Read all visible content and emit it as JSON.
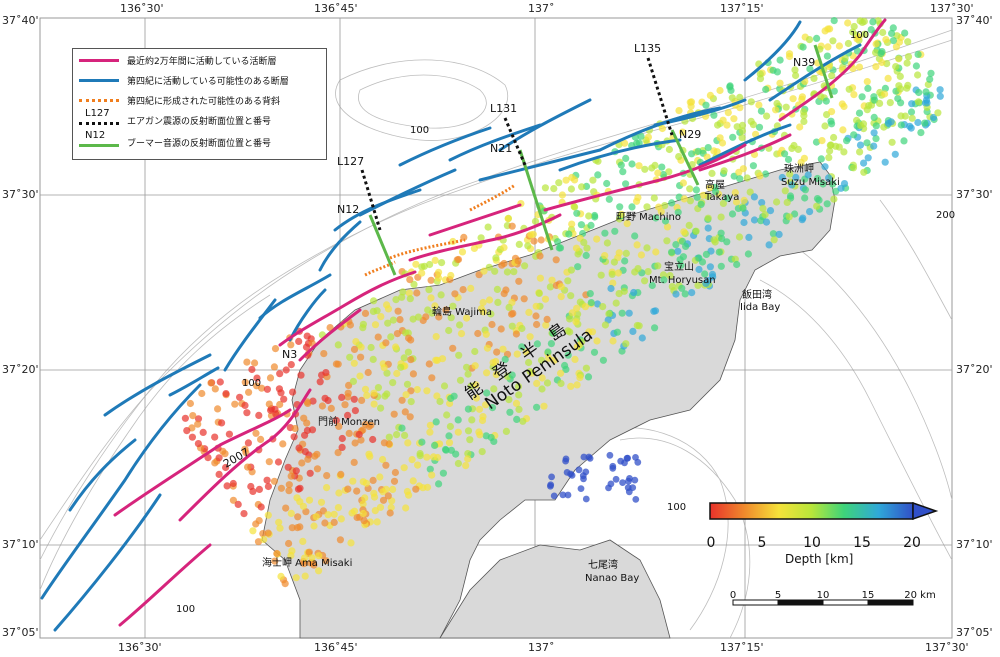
{
  "coords": {
    "top_left": "37˚40'",
    "lon_ticks": [
      "136˚30'",
      "136˚45'",
      "137˚",
      "137˚15'",
      "137˚30'"
    ],
    "lat_ticks": [
      "37˚40'",
      "37˚30'",
      "37˚20'",
      "37˚10'",
      "37˚05'"
    ]
  },
  "legend": [
    {
      "label": "最近約2万年間に活動している活断層",
      "color": "#d6247c",
      "style": "solid"
    },
    {
      "label": "第四紀に活動している可能性のある断層",
      "color": "#1f7ab8",
      "style": "solid"
    },
    {
      "label": "第四紀に形成された可能性のある背斜",
      "color": "#f07e1e",
      "style": "dotted"
    },
    {
      "label": "エアガン震源の反射断面位置と番号",
      "color": "#111111",
      "style": "dotted",
      "sample": "L127"
    },
    {
      "label": "ブーマー音源の反射断面位置と番号",
      "color": "#5cb84a",
      "style": "solid",
      "sample": "N12"
    }
  ],
  "survey_lines": {
    "L127": "L127",
    "N12": "N12",
    "L131": "L131",
    "N21": "N21",
    "L135": "L135",
    "N29": "N29",
    "N39": "N39",
    "N3": "N3",
    "year": "2007"
  },
  "places": {
    "wajima": "輪島 Wajima",
    "monzen": "門前 Monzen",
    "ama": "海士岬 Ama Misaki",
    "machino": "町野 Machino",
    "horyusan_jp": "宝立山",
    "horyusan_en": "Mt. Horyusan",
    "iida_jp": "飯田湾",
    "iida_en": "Iida Bay",
    "takaya_jp": "高屋",
    "takaya_en": "Takaya",
    "suzu_jp": "珠洲岬",
    "suzu_en": "Suzu Misaki",
    "nanao_jp": "七尾湾",
    "nanao_en": "Nanao Bay",
    "peninsula_jp": "能　登　半　島",
    "peninsula_en": "Noto Peninsula"
  },
  "contours": [
    "100",
    "100",
    "100",
    "100",
    "100",
    "200"
  ],
  "colorbar": {
    "label": "Depth [km]",
    "ticks": [
      "0",
      "5",
      "10",
      "15",
      "20"
    ],
    "colors": [
      "#e8322b",
      "#f08a2c",
      "#f5e23a",
      "#b8e63a",
      "#3ed47a",
      "#2fa8d8",
      "#3150c8"
    ]
  },
  "scalebar": {
    "ticks": [
      "0",
      "5",
      "10",
      "15",
      "20 km"
    ]
  },
  "colors": {
    "land": "#d9d9d9",
    "sea": "#ffffff",
    "active_fault": "#d6247c",
    "quaternary_fault": "#1f7ab8",
    "anticline": "#f07e1e",
    "boomer": "#5cb84a"
  }
}
